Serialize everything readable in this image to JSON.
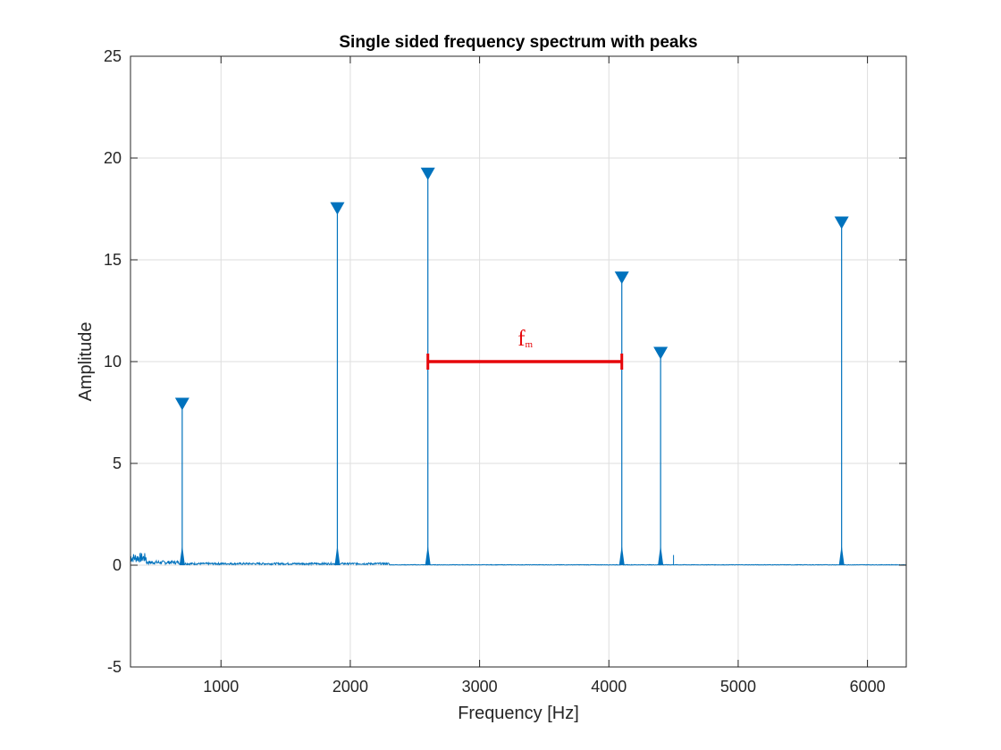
{
  "chart_data": {
    "type": "line",
    "title": "Single sided frequency spectrum with peaks",
    "xlabel": "Frequency [Hz]",
    "ylabel": "Amplitude",
    "xlim": [
      300,
      6300
    ],
    "ylim": [
      -5,
      25
    ],
    "x_ticks": [
      1000,
      2000,
      3000,
      4000,
      5000,
      6000
    ],
    "x_tick_labels": [
      "1000",
      "2000",
      "3000",
      "4000",
      "5000",
      "6000"
    ],
    "y_ticks": [
      -5,
      0,
      5,
      10,
      15,
      20,
      25
    ],
    "y_tick_labels": [
      "-5",
      "0",
      "5",
      "10",
      "15",
      "20",
      "25"
    ],
    "grid": true,
    "line_color": "#0072BD",
    "peaks": [
      {
        "x": 700,
        "y": 7.7
      },
      {
        "x": 1900,
        "y": 17.3
      },
      {
        "x": 2600,
        "y": 19.0
      },
      {
        "x": 4100,
        "y": 13.9
      },
      {
        "x": 4400,
        "y": 10.2
      },
      {
        "x": 5800,
        "y": 16.6
      }
    ],
    "minor_spikes": [
      {
        "x": 4500,
        "y": 0.5
      }
    ],
    "noise_floor": [
      {
        "x_start": 300,
        "x_end": 420,
        "level": 0.4
      },
      {
        "x_start": 420,
        "x_end": 700,
        "level": 0.15
      },
      {
        "x_start": 700,
        "x_end": 2300,
        "level": 0.08
      },
      {
        "x_start": 2300,
        "x_end": 6300,
        "level": 0.02
      }
    ],
    "annotation": {
      "label": "f",
      "subscript": "m",
      "color": "#e6060a",
      "x_start": 2600,
      "x_end": 4100,
      "y": 10
    }
  }
}
